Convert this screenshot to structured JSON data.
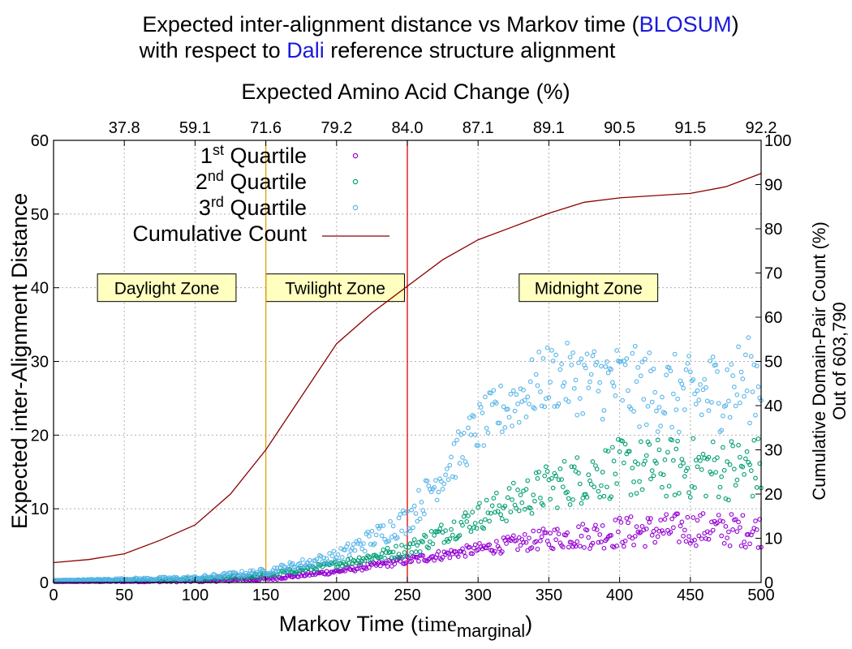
{
  "title": {
    "line1_prefix": "Expected inter-alignment distance vs Markov time (",
    "line1_highlight": "BLOSUM",
    "line1_suffix": ")",
    "line2_prefix": "with respect to ",
    "line2_highlight": "Dali",
    "line2_suffix": " reference structure alignment",
    "highlight_color": "#1a1adc"
  },
  "chart_data": {
    "type": "scatter",
    "x_axis": {
      "label_main": "Markov Time (",
      "label_time": "time",
      "label_sub": "marginal",
      "label_close": ")",
      "range": [
        0,
        500
      ],
      "ticks": [
        0,
        50,
        100,
        150,
        200,
        250,
        300,
        350,
        400,
        450,
        500
      ]
    },
    "x2_axis": {
      "label": "Expected Amino Acid Change (%)",
      "ticks": [
        {
          "x": 50,
          "label": "37.8"
        },
        {
          "x": 100,
          "label": "59.1"
        },
        {
          "x": 150,
          "label": "71.6"
        },
        {
          "x": 200,
          "label": "79.2"
        },
        {
          "x": 250,
          "label": "84.0"
        },
        {
          "x": 300,
          "label": "87.1"
        },
        {
          "x": 350,
          "label": "89.1"
        },
        {
          "x": 400,
          "label": "90.5"
        },
        {
          "x": 450,
          "label": "91.5"
        },
        {
          "x": 500,
          "label": "92.2"
        }
      ]
    },
    "y_axis": {
      "label": "Expected inter-Alignment Distance",
      "range": [
        0,
        60
      ],
      "ticks": [
        0,
        10,
        20,
        30,
        40,
        50,
        60
      ]
    },
    "y2_axis": {
      "label_line1": "Cumulative Domain-Pair Count (%)",
      "label_line2": "Out of 603,790",
      "range": [
        0,
        100
      ],
      "ticks": [
        0,
        10,
        20,
        30,
        40,
        50,
        60,
        70,
        80,
        90,
        100
      ]
    },
    "grid": true,
    "legend_position": "top-left",
    "legend": [
      {
        "sup": "st",
        "prefix": "1",
        "suffix": " Quartile",
        "color": "#9400d3",
        "kind": "point"
      },
      {
        "sup": "nd",
        "prefix": "2",
        "suffix": " Quartile",
        "color": "#009e73",
        "kind": "point"
      },
      {
        "sup": "rd",
        "prefix": "3",
        "suffix": " Quartile",
        "color": "#56b4e9",
        "kind": "point"
      },
      {
        "sup": "",
        "prefix": "Cumulative Count",
        "suffix": "",
        "color": "#8b0000",
        "kind": "line"
      }
    ],
    "zones": [
      {
        "label": "Daylight Zone",
        "x_center": 80,
        "y": 40
      },
      {
        "label": "Twilight Zone",
        "x_center": 199,
        "y": 40
      },
      {
        "label": "Midnight Zone",
        "x_center": 378,
        "y": 40
      }
    ],
    "vlines": [
      {
        "x": 150,
        "color": "#e6a000"
      },
      {
        "x": 250,
        "color": "#e00000"
      }
    ],
    "series": [
      {
        "name": "1st Quartile",
        "color": "#9400d3",
        "trend": [
          [
            0,
            0.1
          ],
          [
            100,
            0.2
          ],
          [
            150,
            0.5
          ],
          [
            200,
            1.5
          ],
          [
            250,
            3.0
          ],
          [
            300,
            4.5
          ],
          [
            350,
            6.0
          ],
          [
            400,
            6.8
          ],
          [
            450,
            7.3
          ],
          [
            500,
            7.0
          ]
        ],
        "spread": [
          [
            0,
            0
          ],
          [
            200,
            0.3
          ],
          [
            300,
            0.8
          ],
          [
            350,
            1.5
          ],
          [
            400,
            2.2
          ],
          [
            450,
            2.3
          ],
          [
            500,
            2.3
          ]
        ]
      },
      {
        "name": "2nd Quartile",
        "color": "#009e73",
        "trend": [
          [
            0,
            0.2
          ],
          [
            100,
            0.4
          ],
          [
            150,
            1.0
          ],
          [
            200,
            2.5
          ],
          [
            250,
            4.5
          ],
          [
            300,
            9.0
          ],
          [
            350,
            13.0
          ],
          [
            400,
            15.5
          ],
          [
            450,
            15.5
          ],
          [
            500,
            15.5
          ]
        ],
        "spread": [
          [
            0,
            0
          ],
          [
            200,
            0.4
          ],
          [
            250,
            1.0
          ],
          [
            300,
            2.0
          ],
          [
            350,
            3.2
          ],
          [
            400,
            4.0
          ],
          [
            500,
            4.5
          ]
        ]
      },
      {
        "name": "3rd Quartile",
        "color": "#56b4e9",
        "trend": [
          [
            0,
            0.3
          ],
          [
            100,
            0.6
          ],
          [
            150,
            1.5
          ],
          [
            200,
            3.5
          ],
          [
            250,
            8.5
          ],
          [
            300,
            21.0
          ],
          [
            350,
            28.0
          ],
          [
            400,
            27.0
          ],
          [
            450,
            25.0
          ],
          [
            500,
            28.0
          ]
        ],
        "spread": [
          [
            0,
            0
          ],
          [
            150,
            0.4
          ],
          [
            200,
            0.9
          ],
          [
            250,
            2.0
          ],
          [
            300,
            3.5
          ],
          [
            350,
            4.5
          ],
          [
            400,
            5.5
          ],
          [
            500,
            6.0
          ]
        ]
      },
      {
        "name": "Cumulative Count",
        "color": "#8b0000",
        "axis": "y2",
        "points": [
          [
            0,
            4.5
          ],
          [
            25,
            5.2
          ],
          [
            50,
            6.5
          ],
          [
            75,
            9.5
          ],
          [
            100,
            13.0
          ],
          [
            125,
            20.0
          ],
          [
            150,
            30.0
          ],
          [
            175,
            42.0
          ],
          [
            200,
            54.0
          ],
          [
            225,
            61.0
          ],
          [
            250,
            67.0
          ],
          [
            275,
            73.0
          ],
          [
            300,
            77.5
          ],
          [
            325,
            80.5
          ],
          [
            350,
            83.5
          ],
          [
            375,
            86.0
          ],
          [
            400,
            87.0
          ],
          [
            425,
            87.5
          ],
          [
            450,
            88.0
          ],
          [
            475,
            89.5
          ],
          [
            500,
            92.5
          ]
        ]
      }
    ]
  }
}
